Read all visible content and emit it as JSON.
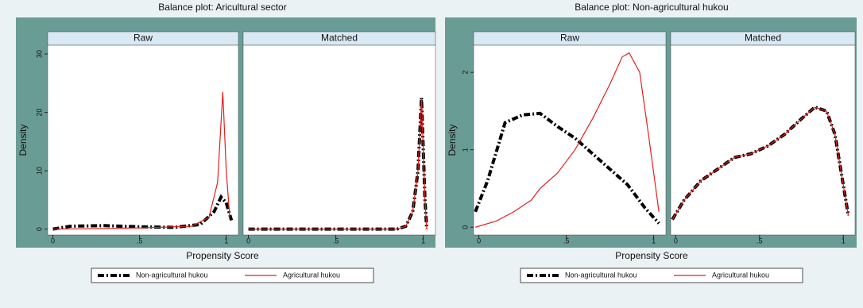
{
  "chart_data": [
    {
      "type": "line",
      "title": "Balance plot: Aricultural sector",
      "ylabel": "Density",
      "xlabel": "Propensity Score",
      "xlim": [
        -0.03,
        1.07
      ],
      "ylim": [
        -1,
        31.5
      ],
      "xticks": [
        0,
        {
          "value": 0.5,
          "label": ".5"
        },
        1
      ],
      "yticks": [
        0,
        10,
        20,
        30
      ],
      "legend": [
        {
          "name": "Non-agricultural hukou",
          "color": "#000000",
          "dash": true
        },
        {
          "name": "Agricultural hukou",
          "color": "#e02020",
          "dash": false
        }
      ],
      "panels": [
        {
          "title": "Raw",
          "series": [
            {
              "x": [
                0,
                0.1,
                0.3,
                0.5,
                0.7,
                0.85,
                0.93,
                0.97,
                1.0,
                1.03
              ],
              "values": [
                0,
                0.5,
                0.6,
                0.4,
                0.3,
                0.8,
                3,
                5.5,
                4.5,
                1.5
              ]
            },
            {
              "x": [
                0,
                0.5,
                0.8,
                0.9,
                0.95,
                0.98,
                1.0,
                1.02
              ],
              "values": [
                0,
                0.2,
                0.5,
                2,
                8,
                23.5,
                10,
                2
              ]
            }
          ]
        },
        {
          "title": "Matched",
          "series": [
            {
              "x": [
                0,
                0.5,
                0.85,
                0.9,
                0.94,
                0.97,
                0.99,
                1.01,
                1.02
              ],
              "values": [
                0,
                0,
                0,
                0.5,
                3,
                10,
                22.5,
                5,
                0
              ]
            },
            {
              "x": [
                0,
                0.5,
                0.85,
                0.9,
                0.94,
                0.97,
                0.99,
                1.01,
                1.02
              ],
              "values": [
                0,
                0,
                0,
                0.5,
                3,
                10,
                22.5,
                5,
                0
              ]
            }
          ]
        }
      ]
    },
    {
      "type": "line",
      "title": "Balance plot: Non-agricultural hukou",
      "ylabel": "Density",
      "xlabel": "Propensity Score",
      "xlim": [
        -0.03,
        1.07
      ],
      "ylim": [
        -0.1,
        2.35
      ],
      "xticks": [
        0,
        {
          "value": 0.5,
          "label": ".5"
        },
        1
      ],
      "yticks": [
        0,
        1,
        2
      ],
      "legend": [
        {
          "name": "Non-agricultural hukou",
          "color": "#000000",
          "dash": true
        },
        {
          "name": "Agricultural hukou",
          "color": "#e02020",
          "dash": false
        }
      ],
      "panels": [
        {
          "title": "Raw",
          "series": [
            {
              "x": [
                -0.02,
                0.05,
                0.15,
                0.25,
                0.35,
                0.45,
                0.55,
                0.65,
                0.75,
                0.85,
                0.95,
                1.03
              ],
              "values": [
                0.2,
                0.6,
                1.35,
                1.45,
                1.47,
                1.3,
                1.15,
                0.95,
                0.75,
                0.55,
                0.25,
                0.05
              ]
            },
            {
              "x": [
                -0.02,
                0.1,
                0.2,
                0.3,
                0.35,
                0.45,
                0.55,
                0.65,
                0.75,
                0.82,
                0.86,
                0.92,
                0.97,
                1.03
              ],
              "values": [
                0,
                0.08,
                0.2,
                0.35,
                0.5,
                0.7,
                1.0,
                1.4,
                1.85,
                2.2,
                2.25,
                2.0,
                1.2,
                0.2
              ]
            }
          ]
        },
        {
          "title": "Matched",
          "series": [
            {
              "x": [
                -0.02,
                0.05,
                0.15,
                0.25,
                0.35,
                0.45,
                0.55,
                0.65,
                0.75,
                0.83,
                0.9,
                0.95,
                1.03
              ],
              "values": [
                0.1,
                0.35,
                0.6,
                0.75,
                0.9,
                0.95,
                1.05,
                1.2,
                1.4,
                1.55,
                1.5,
                1.2,
                0.15
              ]
            },
            {
              "x": [
                -0.02,
                0.05,
                0.15,
                0.25,
                0.35,
                0.45,
                0.55,
                0.65,
                0.75,
                0.83,
                0.9,
                0.95,
                1.03
              ],
              "values": [
                0.1,
                0.35,
                0.6,
                0.75,
                0.9,
                0.95,
                1.05,
                1.2,
                1.4,
                1.55,
                1.5,
                1.2,
                0.15
              ]
            }
          ]
        }
      ]
    }
  ]
}
